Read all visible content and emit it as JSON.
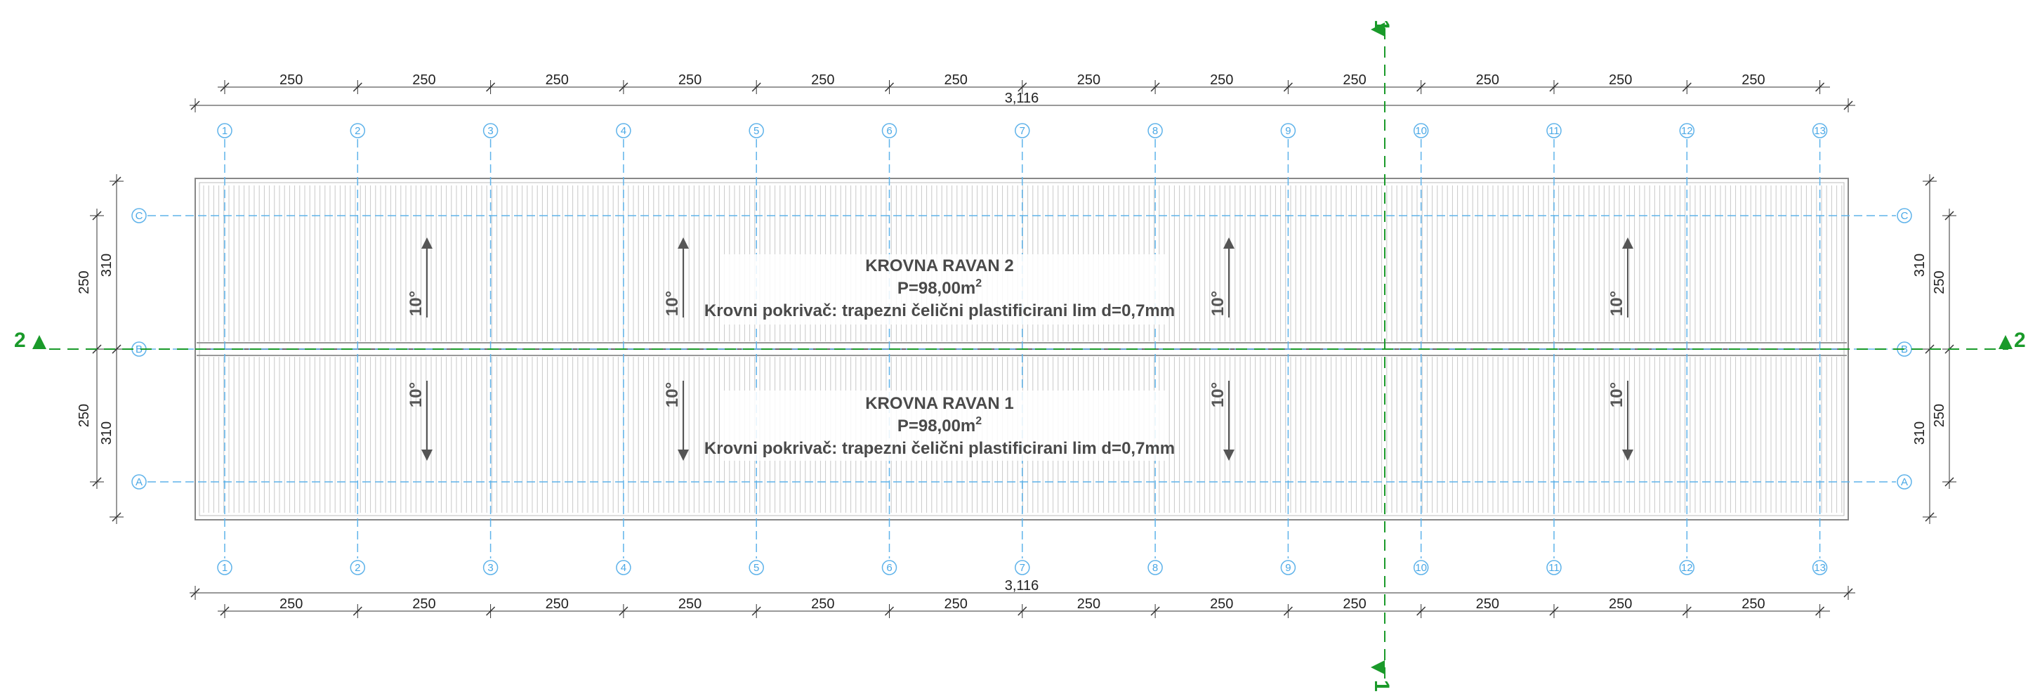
{
  "drawing": {
    "axes_numbers": [
      "1",
      "2",
      "3",
      "4",
      "5",
      "6",
      "7",
      "8",
      "9",
      "10",
      "11",
      "12",
      "13"
    ],
    "axes_letters": [
      "C",
      "B",
      "A"
    ],
    "bay_dimension": "250",
    "total_dimension": "3,116",
    "side_dims_outer": "250",
    "side_dims_inner": "310",
    "slope_label": "10°",
    "section_1": "1",
    "section_2": "2",
    "roof_plane_2": {
      "title": "KROVNA RAVAN 2",
      "area_prefix": "P=98,00m",
      "area_sup": "2",
      "covering": "Krovni pokrivač: trapezni čelični plastificirani lim d=0,7mm"
    },
    "roof_plane_1": {
      "title": "KROVNA RAVAN 1",
      "area_prefix": "P=98,00m",
      "area_sup": "2",
      "covering": "Krovni pokrivač: trapezni čelični plastificirani lim d=0,7mm"
    },
    "colors": {
      "grid_line": "#5fb3ea",
      "section_line": "#1a9a2a",
      "dim_line": "#333333",
      "sheet_line": "#b8b8b8",
      "text": "#4a4a4a"
    }
  }
}
